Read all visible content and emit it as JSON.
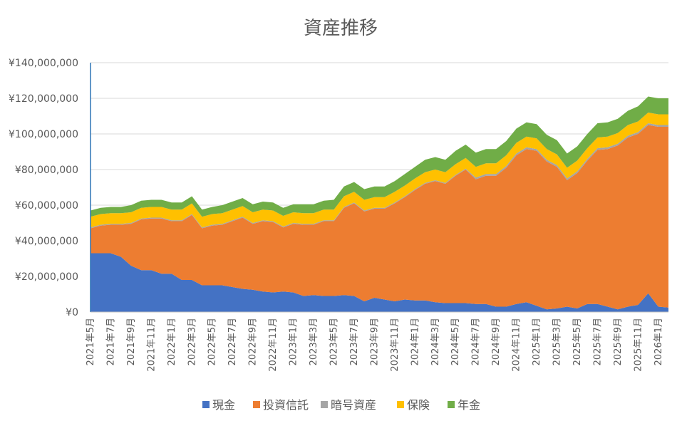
{
  "chart_data": {
    "type": "area",
    "stacked": true,
    "title": "資産推移",
    "xlabel": "",
    "ylabel": "",
    "ylim": [
      0,
      140000000
    ],
    "y_ticks": [
      0,
      20000000,
      40000000,
      60000000,
      80000000,
      100000000,
      120000000,
      140000000
    ],
    "y_tick_labels": [
      "¥0",
      "¥20,000,000",
      "¥40,000,000",
      "¥60,000,000",
      "¥80,000,000",
      "¥100,000,000",
      "¥120,000,000",
      "¥140,000,000"
    ],
    "grid": "horizontal",
    "legend_position": "bottom",
    "x": [
      "2021年5月",
      "2021年6月",
      "2021年7月",
      "2021年8月",
      "2021年9月",
      "2021年10月",
      "2021年11月",
      "2021年12月",
      "2022年1月",
      "2022年2月",
      "2022年3月",
      "2022年4月",
      "2022年5月",
      "2022年6月",
      "2022年7月",
      "2022年8月",
      "2022年9月",
      "2022年10月",
      "2022年11月",
      "2022年12月",
      "2023年1月",
      "2023年2月",
      "2023年3月",
      "2023年4月",
      "2023年5月",
      "2023年6月",
      "2023年7月",
      "2023年8月",
      "2023年9月",
      "2023年10月",
      "2023年11月",
      "2023年12月",
      "2024年1月",
      "2024年2月",
      "2024年3月",
      "2024年4月",
      "2024年5月",
      "2024年6月",
      "2024年7月",
      "2024年8月",
      "2024年9月",
      "2024年10月",
      "2024年11月",
      "2024年12月",
      "2025年1月",
      "2025年2月",
      "2025年3月",
      "2025年4月",
      "2025年5月",
      "2025年6月",
      "2025年7月",
      "2025年8月",
      "2025年9月",
      "2025年10月",
      "2025年11月",
      "2025年12月",
      "2026年1月",
      "2026年2月"
    ],
    "x_tick_labels": [
      "2021年5月",
      "2021年7月",
      "2021年9月",
      "2021年11月",
      "2022年1月",
      "2022年3月",
      "2022年5月",
      "2022年7月",
      "2022年9月",
      "2022年11月",
      "2023年1月",
      "2023年3月",
      "2023年5月",
      "2023年7月",
      "2023年9月",
      "2023年11月",
      "2024年1月",
      "2024年3月",
      "2024年5月",
      "2024年7月",
      "2024年9月",
      "2024年11月",
      "2025年1月",
      "2025年3月",
      "2025年5月",
      "2025年7月",
      "2025年9月",
      "2025年11月",
      "2026年1月"
    ],
    "series": [
      {
        "name": "現金",
        "color": "#4472C4",
        "values": [
          33000000,
          33000000,
          33000000,
          31000000,
          26000000,
          23500000,
          23500000,
          21500000,
          21500000,
          18000000,
          18000000,
          15000000,
          15000000,
          15000000,
          14000000,
          13000000,
          12500000,
          11500000,
          11000000,
          11500000,
          11000000,
          9000000,
          9500000,
          9000000,
          9000000,
          9500000,
          9000000,
          6000000,
          8000000,
          7000000,
          6000000,
          7000000,
          6500000,
          6500000,
          5500000,
          5000000,
          5000000,
          5000000,
          4500000,
          4500000,
          3000000,
          3000000,
          4500000,
          5500000,
          3500000,
          1500000,
          2000000,
          3000000,
          2000000,
          4500000,
          4500000,
          3000000,
          1500000,
          3000000,
          4000000,
          10500000,
          3000000,
          2500000
        ]
      },
      {
        "name": "投資信託",
        "color": "#ED7D31",
        "values": [
          14000000,
          15500000,
          16000000,
          18000000,
          23500000,
          28500000,
          29000000,
          31000000,
          29500000,
          33000000,
          36500000,
          32000000,
          33500000,
          34000000,
          37000000,
          40000000,
          37000000,
          39500000,
          39500000,
          36000000,
          38500000,
          40000000,
          39500000,
          42000000,
          42000000,
          49000000,
          52000000,
          50500000,
          50000000,
          51000000,
          55000000,
          57500000,
          62000000,
          65500000,
          68000000,
          67000000,
          71500000,
          75000000,
          70000000,
          72000000,
          73500000,
          78000000,
          83500000,
          86000000,
          87000000,
          83000000,
          79500000,
          71000000,
          76000000,
          80500000,
          86500000,
          88500000,
          92000000,
          95000000,
          96000000,
          94500000,
          101000000,
          101500000
        ]
      },
      {
        "name": "暗号資産",
        "color": "#A5A5A5",
        "values": [
          500000,
          500000,
          500000,
          500000,
          500000,
          500000,
          500000,
          500000,
          500000,
          500000,
          500000,
          500000,
          500000,
          500000,
          500000,
          500000,
          500000,
          500000,
          500000,
          500000,
          500000,
          500000,
          500000,
          500000,
          500000,
          500000,
          500000,
          500000,
          500000,
          500000,
          500000,
          500000,
          500000,
          500000,
          500000,
          500000,
          500000,
          500000,
          1000000,
          1000000,
          1000000,
          1000000,
          1000000,
          1000000,
          1000000,
          1000000,
          1000000,
          1000000,
          1000000,
          1000000,
          1000000,
          1000000,
          1000000,
          1000000,
          1000000,
          1000000,
          1000000,
          1000000
        ]
      },
      {
        "name": "保険",
        "color": "#FFC000",
        "values": [
          6000000,
          6000000,
          6000000,
          6000000,
          6000000,
          6000000,
          6000000,
          6000000,
          6000000,
          6000000,
          6000000,
          6000000,
          6000000,
          6000000,
          6000000,
          6000000,
          6000000,
          6000000,
          6000000,
          6000000,
          6000000,
          6000000,
          6000000,
          6000000,
          6000000,
          6000000,
          6000000,
          6000000,
          6000000,
          6000000,
          6000000,
          6000000,
          6000000,
          6000000,
          6000000,
          6000000,
          6000000,
          6000000,
          6000000,
          6000000,
          6000000,
          6000000,
          6000000,
          6000000,
          6000000,
          6000000,
          6000000,
          6000000,
          6000000,
          6000000,
          6000000,
          6000000,
          6000000,
          6000000,
          6000000,
          6000000,
          6000000,
          6000000
        ]
      },
      {
        "name": "年金",
        "color": "#70AD47",
        "values": [
          3500000,
          3500000,
          3500000,
          3500000,
          4000000,
          4000000,
          4000000,
          4000000,
          4000000,
          4000000,
          4000000,
          4000000,
          4000000,
          4500000,
          4500000,
          4500000,
          4500000,
          4500000,
          4500000,
          4500000,
          4500000,
          5000000,
          5000000,
          5000000,
          5500000,
          5500000,
          5500000,
          6000000,
          6000000,
          6000000,
          6000000,
          6500000,
          6500000,
          7000000,
          7000000,
          7000000,
          7500000,
          7500000,
          8000000,
          8000000,
          8000000,
          8000000,
          8000000,
          8000000,
          8000000,
          8000000,
          8000000,
          8000000,
          8000000,
          8000000,
          8000000,
          8000000,
          8000000,
          8000000,
          8500000,
          9000000,
          9000000,
          9000000
        ]
      }
    ]
  }
}
